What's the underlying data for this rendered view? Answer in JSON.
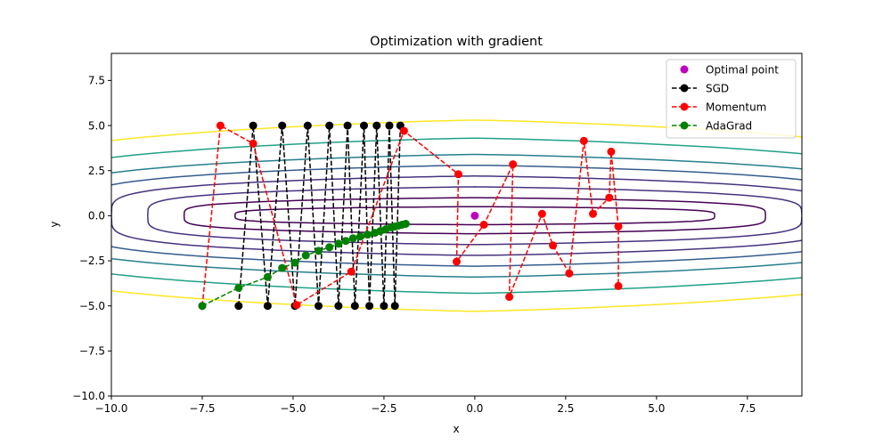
{
  "chart_data": {
    "type": "line",
    "title": "Optimization with gradient",
    "xlabel": "x",
    "ylabel": "y",
    "xlim": [
      -10,
      9
    ],
    "ylim": [
      -10,
      9
    ],
    "xticks": [
      -10.0,
      -7.5,
      -5.0,
      -2.5,
      0.0,
      2.5,
      5.0,
      7.5
    ],
    "yticks": [
      -10.0,
      -7.5,
      -5.0,
      -2.5,
      0.0,
      2.5,
      5.0,
      7.5
    ],
    "xtick_labels": [
      "−10.0",
      "−7.5",
      "−5.0",
      "−2.5",
      "0.0",
      "2.5",
      "5.0",
      "7.5"
    ],
    "ytick_labels": [
      "−10.0",
      "−7.5",
      "−5.0",
      "−2.5",
      "0.0",
      "2.5",
      "5.0",
      "7.5"
    ],
    "grid": false,
    "legend_position": "top-right",
    "contours": {
      "colors": [
        "#440154",
        "#46337e",
        "#365c8d",
        "#277f8e",
        "#1fa187",
        "#4ac16d",
        "#fde725"
      ],
      "levels": [
        {
          "a": 6.6,
          "b": 0.5,
          "color": "#440154"
        },
        {
          "a": 8.0,
          "b": 1.0,
          "color": "#440154"
        },
        {
          "a": 9.0,
          "b": 1.6,
          "color": "#46337e"
        },
        {
          "a": 10.0,
          "b": 2.2,
          "color": "#46337e"
        },
        {
          "a": 11.0,
          "b": 2.8,
          "color": "#365c8d"
        },
        {
          "a": 12.0,
          "b": 3.4,
          "color": "#277f8e"
        },
        {
          "a": 13.0,
          "b": 4.3,
          "color": "#1fa187"
        },
        {
          "a": 14.0,
          "b": 5.3,
          "color": "#fde725"
        }
      ]
    },
    "optimal_point": {
      "name": "Optimal point",
      "x": 0.0,
      "y": 0.0,
      "color": "#bf00bf"
    },
    "series": [
      {
        "name": "SGD",
        "color": "#000000",
        "x": [
          -6.5,
          -6.1,
          -5.7,
          -5.3,
          -4.95,
          -4.6,
          -4.3,
          -4.0,
          -3.75,
          -3.5,
          -3.3,
          -3.05,
          -2.9,
          -2.7,
          -2.5,
          -2.35,
          -2.2,
          -2.05
        ],
        "y": [
          -5.0,
          5.0,
          -5.0,
          5.0,
          -5.0,
          5.0,
          -5.0,
          5.0,
          -5.0,
          5.0,
          -5.0,
          5.0,
          -5.0,
          5.0,
          -5.0,
          5.0,
          -5.0,
          5.0
        ]
      },
      {
        "name": "Momentum",
        "color": "#ff0000",
        "x": [
          -7.5,
          -7.0,
          -6.1,
          -4.9,
          -3.4,
          -1.95,
          -0.45,
          -0.5,
          0.25,
          1.05,
          0.95,
          1.85,
          2.15,
          2.6,
          3.0,
          3.25,
          3.7,
          3.75,
          3.95,
          3.95
        ],
        "y": [
          -5.0,
          5.0,
          4.0,
          -4.95,
          -3.1,
          4.7,
          2.3,
          -2.55,
          -0.5,
          2.85,
          -4.5,
          0.1,
          -1.65,
          -3.2,
          4.15,
          0.1,
          1.0,
          3.55,
          -0.6,
          -3.9
        ]
      },
      {
        "name": "AdaGrad",
        "color": "#008000",
        "x": [
          -7.5,
          -6.5,
          -5.7,
          -5.3,
          -4.95,
          -4.65,
          -4.3,
          -4.0,
          -3.75,
          -3.55,
          -3.35,
          -3.15,
          -2.95,
          -2.75,
          -2.6,
          -2.45,
          -2.3,
          -2.2,
          -2.1,
          -2.0,
          -1.9
        ],
        "y": [
          -5.0,
          -4.0,
          -3.4,
          -2.9,
          -2.6,
          -2.2,
          -1.95,
          -1.75,
          -1.55,
          -1.4,
          -1.25,
          -1.15,
          -1.05,
          -0.95,
          -0.85,
          -0.75,
          -0.65,
          -0.6,
          -0.55,
          -0.5,
          -0.45
        ]
      }
    ]
  }
}
